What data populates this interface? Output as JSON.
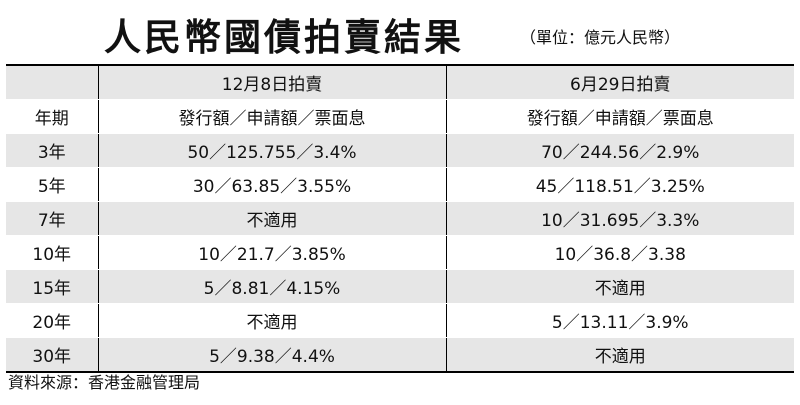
{
  "title": "人民幣國債拍賣結果",
  "unit_note": "（單位：億元人民幣）",
  "table": {
    "columns": [
      "",
      "12月8日拍賣",
      "6月29日拍賣"
    ],
    "rows": [
      [
        "年期",
        "發行額／申請額／票面息",
        "發行額／申請額／票面息"
      ],
      [
        "3年",
        "50／125.755／3.4%",
        "70／244.56／2.9%"
      ],
      [
        "5年",
        "30／63.85／3.55%",
        "45／118.51／3.25%"
      ],
      [
        "7年",
        "不適用",
        "10／31.695／3.3%"
      ],
      [
        "10年",
        "10／21.7／3.85%",
        "10／36.8／3.38"
      ],
      [
        "15年",
        "5／8.81／4.15%",
        "不適用"
      ],
      [
        "20年",
        "不適用",
        "5／13.11／3.9%"
      ],
      [
        "30年",
        "5／9.38／4.4%",
        "不適用"
      ]
    ]
  },
  "source": "資料來源：香港金融管理局",
  "colors": {
    "row_shade": "#e6e6e6",
    "text": "#111111",
    "rule": "#000000"
  }
}
